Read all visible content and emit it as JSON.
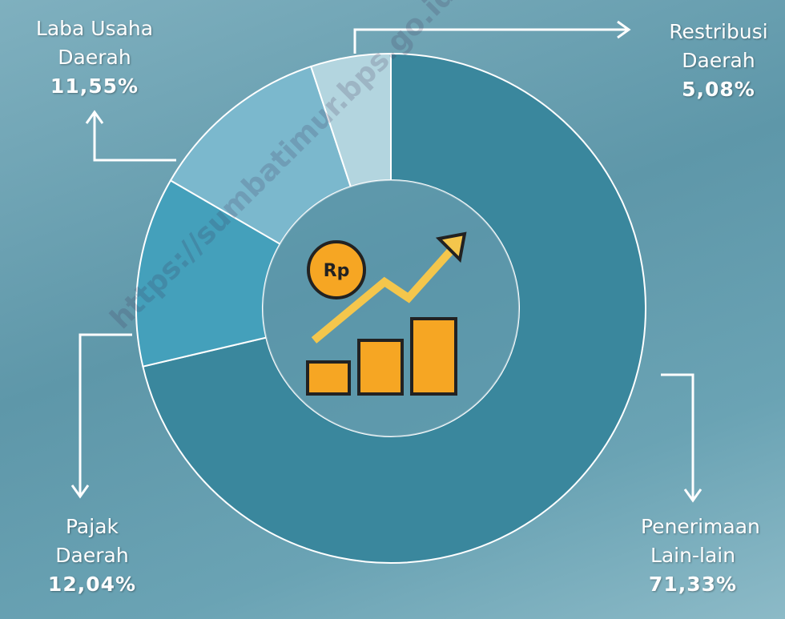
{
  "chart_data": {
    "type": "pie",
    "donut": true,
    "categories": [
      "Penerimaan Lain-lain",
      "Pajak Daerah",
      "Laba Usaha Daerah",
      "Restribusi Daerah"
    ],
    "values": [
      71.33,
      12.04,
      11.55,
      5.08
    ],
    "value_labels": [
      "71,33%",
      "12,04%",
      "11,55%",
      "5,08%"
    ],
    "colors": [
      "#3a879d",
      "#44a0bb",
      "#7bb8cd",
      "#b3d5df"
    ],
    "icon_label": "Rp",
    "watermark": "https://sumbatimur.bps.go.id"
  }
}
